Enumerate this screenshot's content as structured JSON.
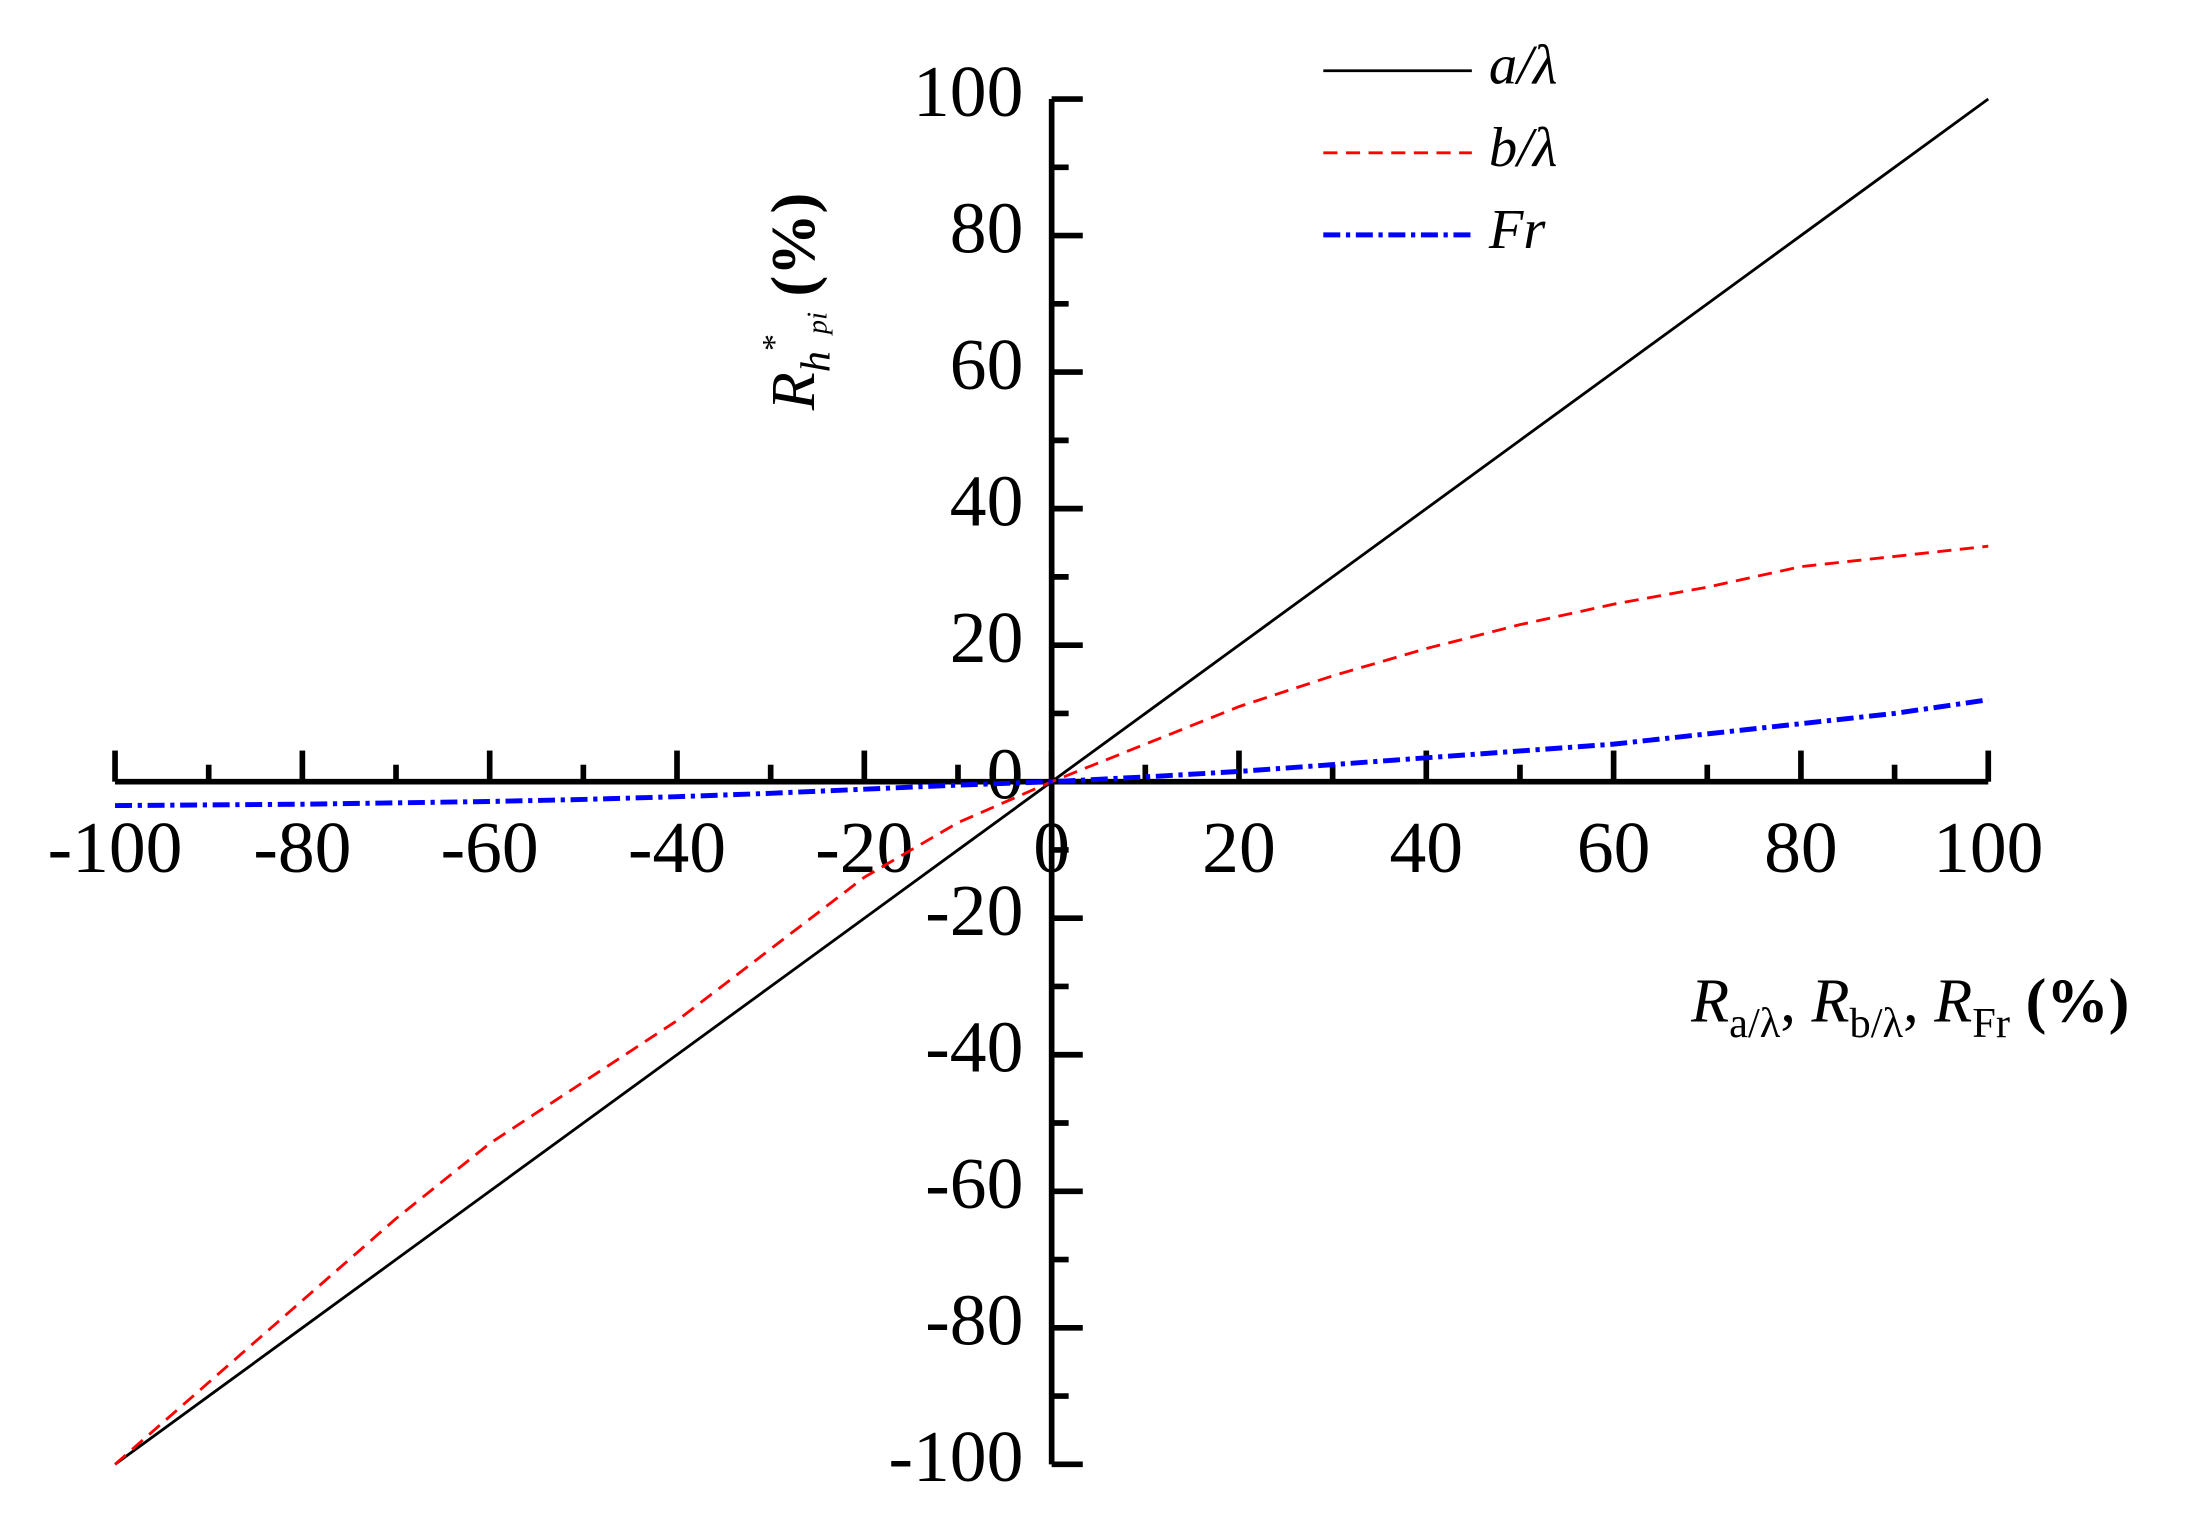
{
  "chart_data": {
    "type": "line",
    "x_label_parts": [
      "R",
      "a/λ",
      ", ",
      "R",
      "b/λ",
      ", ",
      "R",
      "Fr",
      " (%)"
    ],
    "y_label_parts": [
      "R",
      "h",
      "*",
      "pi",
      " (%)"
    ],
    "x": [
      -100,
      -90,
      -80,
      -70,
      -60,
      -50,
      -40,
      -30,
      -20,
      -10,
      0,
      10,
      20,
      30,
      40,
      50,
      60,
      70,
      80,
      90,
      100
    ],
    "series": [
      {
        "name": "a/λ",
        "color": "#000000",
        "style": "solid",
        "values": [
          -100,
          -90,
          -80,
          -70,
          -60,
          -50,
          -40,
          -30,
          -20,
          -10,
          0,
          10,
          20,
          30,
          40,
          50,
          60,
          70,
          80,
          90,
          100
        ]
      },
      {
        "name": "b/λ",
        "color": "#ff0000",
        "style": "dashed",
        "values": [
          -100,
          -88,
          -76,
          -64,
          -53,
          -44,
          -35,
          -24.5,
          -14,
          -6,
          0,
          5.5,
          11,
          15.5,
          19.5,
          23,
          26,
          28.5,
          31.5,
          33,
          34.5
        ]
      },
      {
        "name": "Fr",
        "color": "#0000ff",
        "style": "dashdot",
        "values": [
          -3.5,
          -3.4,
          -3.3,
          -3.1,
          -2.9,
          -2.6,
          -2.2,
          -1.7,
          -1.1,
          -0.5,
          0,
          0.7,
          1.5,
          2.5,
          3.5,
          4.5,
          5.5,
          7,
          8.5,
          10,
          12
        ]
      }
    ],
    "xlim": [
      -100,
      100
    ],
    "xticks": [
      -100,
      -80,
      -60,
      -40,
      -20,
      0,
      20,
      40,
      60,
      80,
      100
    ],
    "ylim": [
      -100,
      100
    ],
    "yticks": [
      -100,
      -80,
      -60,
      -40,
      -20,
      0,
      20,
      40,
      60,
      80,
      100
    ],
    "minor_ticks": true,
    "legend": "top"
  }
}
